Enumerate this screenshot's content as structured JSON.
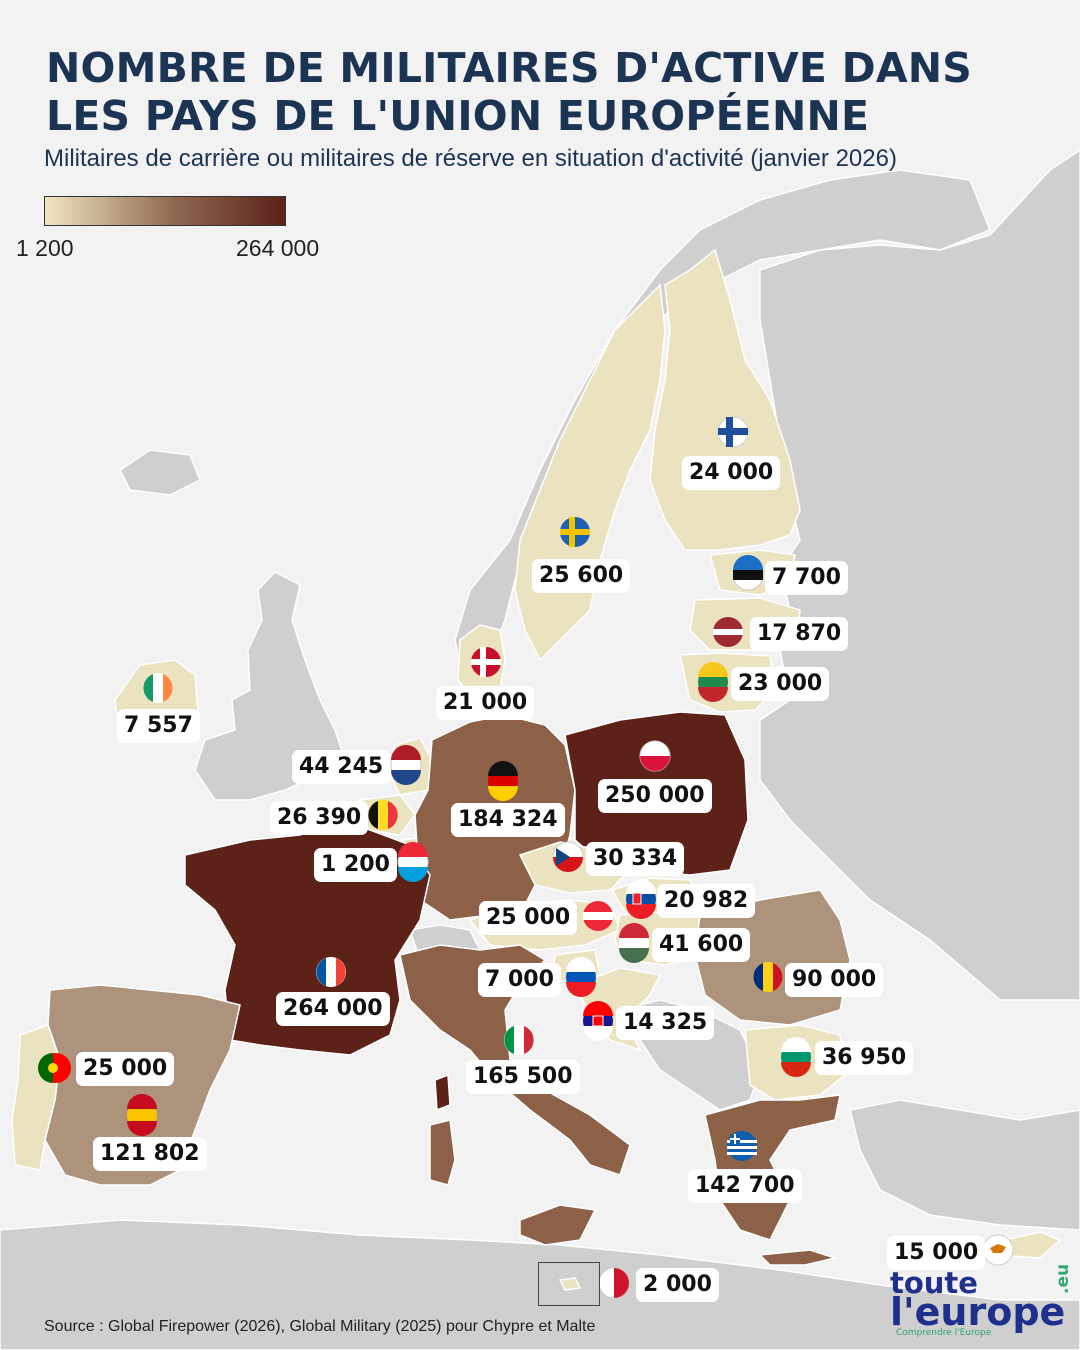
{
  "title": {
    "line1": "NOMBRE DE MILITAIRES D'ACTIVE DANS",
    "line2": "LES PAYS DE L'UNION EUROPÉENNE"
  },
  "subtitle": "Militaires de carrière ou militaires de réserve en situation d'activité (janvier 2026)",
  "legend": {
    "min_label": "1 200",
    "max_label": "264 000",
    "min_value": 1200,
    "max_value": 264000,
    "color_low": "#efe5c3",
    "color_mid": "#8e6650",
    "color_high": "#5a2218"
  },
  "colors": {
    "title": "#1c3454",
    "background": "#f2f2f2",
    "non_eu_land": "#cfcfcf",
    "brand_blue": "#1f2f8c",
    "brand_green": "#2ea86b"
  },
  "countries": [
    {
      "id": "finland",
      "flag": "flag-finland",
      "value": 24000,
      "label": "24 000"
    },
    {
      "id": "sweden",
      "flag": "flag-sweden",
      "value": 25600,
      "label": "25 600"
    },
    {
      "id": "estonia",
      "flag": "flag-estonia",
      "value": 7700,
      "label": "7 700"
    },
    {
      "id": "latvia",
      "flag": "flag-latvia",
      "value": 17870,
      "label": "17 870"
    },
    {
      "id": "lithuania",
      "flag": "flag-lithuania",
      "value": 23000,
      "label": "23 000"
    },
    {
      "id": "denmark",
      "flag": "flag-denmark",
      "value": 21000,
      "label": "21 000"
    },
    {
      "id": "ireland",
      "flag": "flag-ireland",
      "value": 7557,
      "label": "7 557"
    },
    {
      "id": "netherlands",
      "flag": "flag-netherlands",
      "value": 44245,
      "label": "44 245"
    },
    {
      "id": "belgium",
      "flag": "flag-belgium",
      "value": 26390,
      "label": "26 390"
    },
    {
      "id": "luxembourg",
      "flag": "flag-luxembourg",
      "value": 1200,
      "label": "1 200"
    },
    {
      "id": "germany",
      "flag": "flag-germany",
      "value": 184324,
      "label": "184 324"
    },
    {
      "id": "poland",
      "flag": "flag-poland",
      "value": 250000,
      "label": "250 000"
    },
    {
      "id": "czechia",
      "flag": "flag-czechia",
      "value": 30334,
      "label": "30 334"
    },
    {
      "id": "slovakia",
      "flag": "flag-slovakia",
      "value": 20982,
      "label": "20 982"
    },
    {
      "id": "austria",
      "flag": "flag-austria",
      "value": 25000,
      "label": "25 000"
    },
    {
      "id": "hungary",
      "flag": "flag-hungary",
      "value": 41600,
      "label": "41 600"
    },
    {
      "id": "slovenia",
      "flag": "flag-slovenia",
      "value": 7000,
      "label": "7 000"
    },
    {
      "id": "romania",
      "flag": "flag-romania",
      "value": 90000,
      "label": "90 000"
    },
    {
      "id": "croatia",
      "flag": "flag-croatia",
      "value": 14325,
      "label": "14 325"
    },
    {
      "id": "bulgaria",
      "flag": "flag-bulgaria",
      "value": 36950,
      "label": "36 950"
    },
    {
      "id": "france",
      "flag": "flag-france",
      "value": 264000,
      "label": "264 000"
    },
    {
      "id": "italy",
      "flag": "flag-italy",
      "value": 165500,
      "label": "165 500"
    },
    {
      "id": "portugal",
      "flag": "flag-portugal",
      "value": 25000,
      "label": "25 000"
    },
    {
      "id": "spain",
      "flag": "flag-spain",
      "value": 121802,
      "label": "121 802"
    },
    {
      "id": "greece",
      "flag": "flag-greece",
      "value": 142700,
      "label": "142 700"
    },
    {
      "id": "cyprus",
      "flag": "flag-cyprus",
      "value": 15000,
      "label": "15 000"
    },
    {
      "id": "malta",
      "flag": "flag-malta",
      "value": 2000,
      "label": "2 000"
    }
  ],
  "source": "Source : Global Firepower (2026), Global Military (2025) pour Chypre et Malte",
  "brand": {
    "line1": "toute",
    "line2": "l'europe",
    "suffix": ".eu",
    "tagline": "Comprendre l'Europe"
  }
}
